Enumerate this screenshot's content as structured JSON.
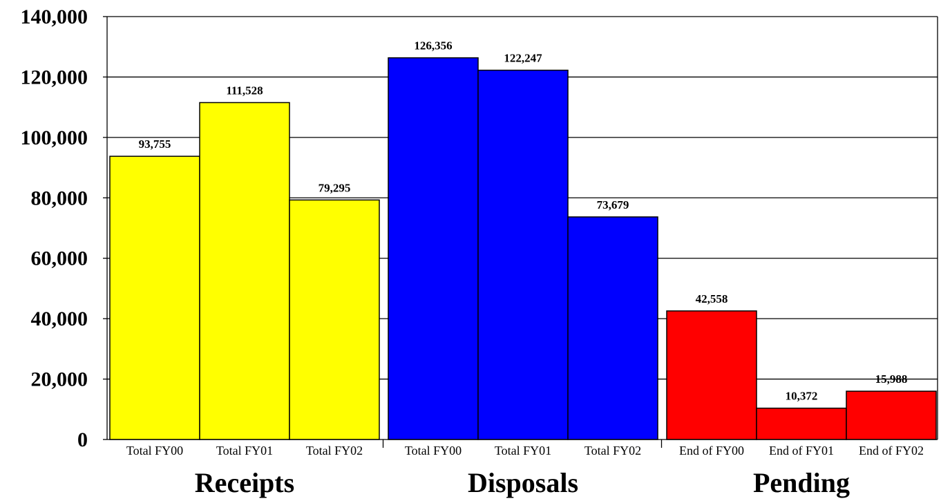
{
  "chart_data": {
    "type": "bar",
    "ylim": [
      0,
      140000
    ],
    "yticks": [
      "0",
      "20,000",
      "40,000",
      "60,000",
      "80,000",
      "100,000",
      "120,000",
      "140,000"
    ],
    "grid": true,
    "groups": [
      {
        "name": "Receipts",
        "color": "#ffff00",
        "categories": [
          "Total FY00",
          "Total FY01",
          "Total FY02"
        ],
        "values": [
          93755,
          111528,
          79295
        ],
        "labels": [
          "93,755",
          "111,528",
          "79,295"
        ]
      },
      {
        "name": "Disposals",
        "color": "#0000ff",
        "categories": [
          "Total FY00",
          "Total FY01",
          "Total FY02"
        ],
        "values": [
          126356,
          122247,
          73679
        ],
        "labels": [
          "126,356",
          "122,247",
          "73,679"
        ]
      },
      {
        "name": "Pending",
        "color": "#ff0000",
        "categories": [
          "End of FY00",
          "End of FY01",
          "End of FY02"
        ],
        "values": [
          42558,
          10372,
          15988
        ],
        "labels": [
          "42,558",
          "10,372",
          "15,988"
        ]
      }
    ]
  }
}
